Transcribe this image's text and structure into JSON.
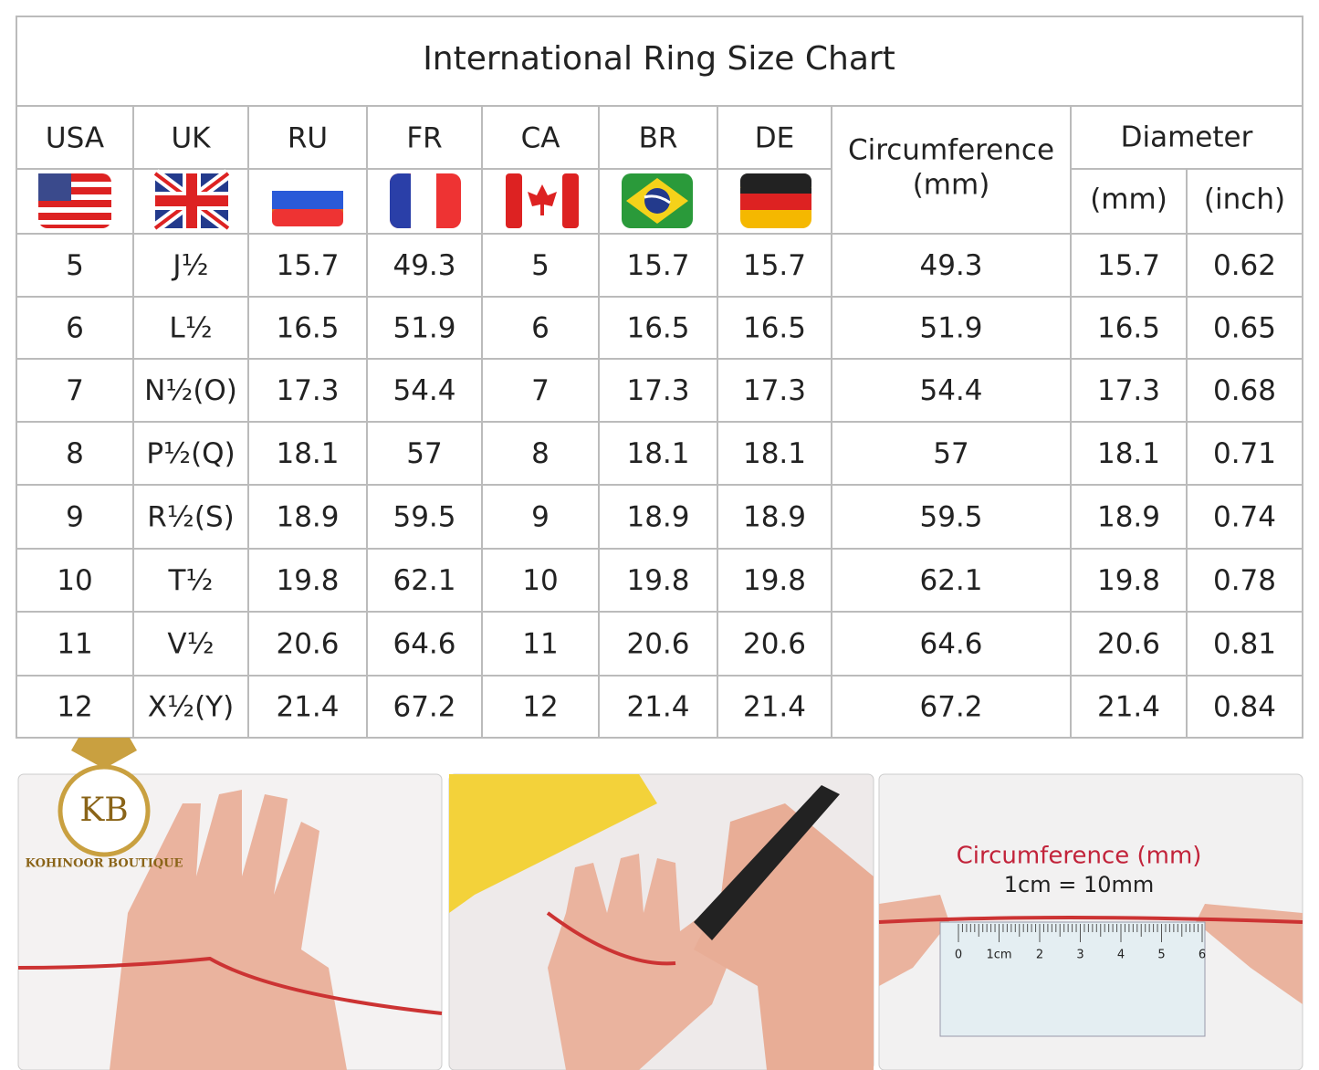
{
  "table": {
    "title": "International Ring Size Chart",
    "headers": [
      "USA",
      "UK",
      "RU",
      "FR",
      "CA",
      "BR",
      "DE"
    ],
    "circumference_header": [
      "Circumference",
      "(mm)"
    ],
    "diameter_header": "Diameter",
    "diameter_units": [
      "(mm)",
      "(inch)"
    ],
    "rows": [
      [
        "5",
        "J½",
        "15.7",
        "49.3",
        "5",
        "15.7",
        "15.7",
        "49.3",
        "15.7",
        "0.62"
      ],
      [
        "6",
        "L½",
        "16.5",
        "51.9",
        "6",
        "16.5",
        "16.5",
        "51.9",
        "16.5",
        "0.65"
      ],
      [
        "7",
        "N½(O)",
        "17.3",
        "54.4",
        "7",
        "17.3",
        "17.3",
        "54.4",
        "17.3",
        "0.68"
      ],
      [
        "8",
        "P½(Q)",
        "18.1",
        "57",
        "8",
        "18.1",
        "18.1",
        "57",
        "18.1",
        "0.71"
      ],
      [
        "9",
        "R½(S)",
        "18.9",
        "59.5",
        "9",
        "18.9",
        "18.9",
        "59.5",
        "18.9",
        "0.74"
      ],
      [
        "10",
        "T½",
        "19.8",
        "62.1",
        "10",
        "19.8",
        "19.8",
        "62.1",
        "19.8",
        "0.78"
      ],
      [
        "11",
        "V½",
        "20.6",
        "64.6",
        "11",
        "20.6",
        "20.6",
        "64.6",
        "20.6",
        "0.81"
      ],
      [
        "12",
        "X½(Y)",
        "21.4",
        "67.2",
        "12",
        "21.4",
        "21.4",
        "67.2",
        "21.4",
        "0.84"
      ]
    ]
  },
  "logo": {
    "initials": "KB",
    "name": "KOHINOOR BOUTIQUE"
  },
  "photos": {
    "caption": "Circumference (mm)",
    "scale": "1cm = 10mm",
    "ruler": [
      "0",
      "1cm",
      "2",
      "3",
      "4",
      "5",
      "6"
    ]
  }
}
